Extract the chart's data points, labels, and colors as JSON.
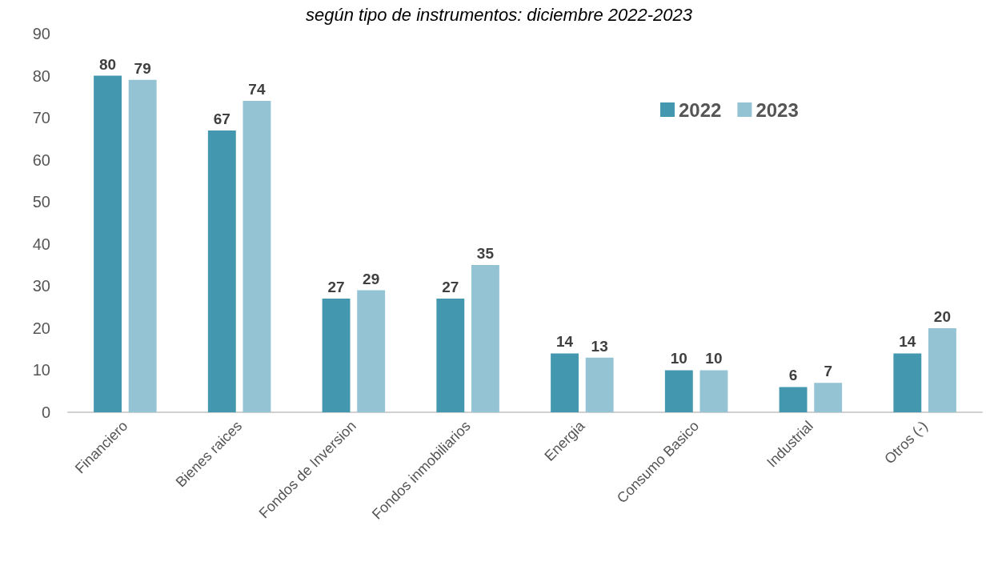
{
  "chart_data": {
    "type": "bar",
    "title": "según tipo de instrumentos: diciembre 2022-2023",
    "categories": [
      "Financiero",
      "Bienes raices",
      "Fondos de Inversion",
      "Fondos inmobiliarios",
      "Energia",
      "Consumo Basico",
      "Industrial",
      "Otros (-)"
    ],
    "series": [
      {
        "name": "2022",
        "color": "#4397ae",
        "values": [
          80,
          67,
          27,
          27,
          14,
          10,
          6,
          14
        ]
      },
      {
        "name": "2023",
        "color": "#94c3d4",
        "values": [
          79,
          74,
          29,
          35,
          13,
          10,
          7,
          20
        ]
      }
    ],
    "ylim": [
      0,
      90
    ],
    "yticks": [
      0,
      10,
      20,
      30,
      40,
      50,
      60,
      70,
      80,
      90
    ],
    "grid": false,
    "legend": "top right",
    "data_labels": true
  }
}
